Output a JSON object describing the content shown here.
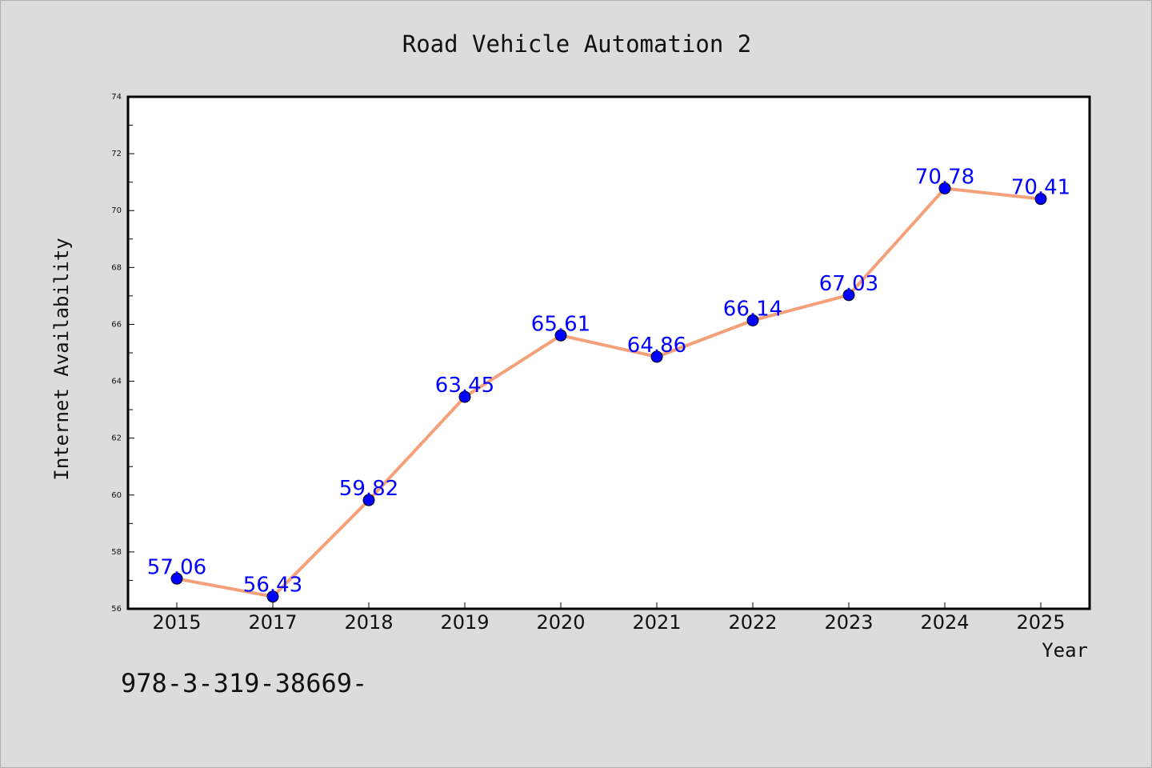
{
  "chart_data": {
    "type": "line",
    "title": "Road Vehicle Automation 2",
    "xlabel": "Year",
    "ylabel": "Internet Availability",
    "categories": [
      "2015",
      "2017",
      "2018",
      "2019",
      "2020",
      "2021",
      "2022",
      "2023",
      "2024",
      "2025"
    ],
    "series": [
      {
        "values": [
          57.06,
          56.43,
          59.82,
          63.45,
          65.61,
          64.86,
          66.14,
          67.03,
          70.78,
          70.41
        ],
        "labels": [
          "57.06",
          "56.43",
          "59.82",
          "63.45",
          "65.61",
          "64.86",
          "66.14",
          "67.03",
          "70.78",
          "70.41"
        ],
        "line_color": "#f4a07a",
        "marker_color": "#0000ff"
      }
    ],
    "ylim": [
      56,
      74
    ],
    "yticks": [
      56,
      58,
      60,
      62,
      64,
      66,
      68,
      70,
      72,
      74
    ],
    "grid": false,
    "legend": "none"
  },
  "footnote": "978-3-319-38669-"
}
